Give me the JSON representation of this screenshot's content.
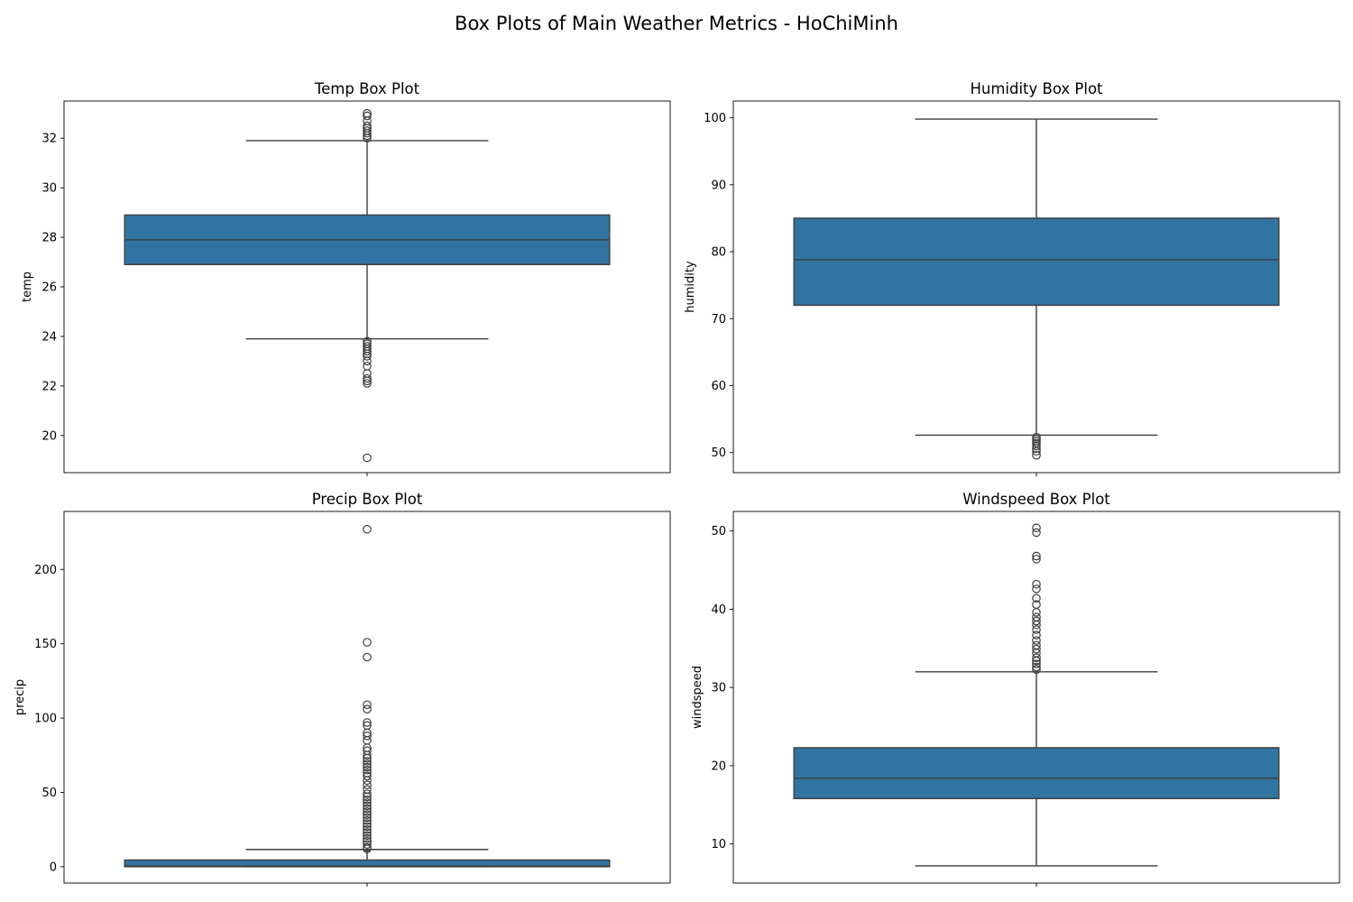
{
  "suptitle": "Box Plots of Main Weather Metrics - HoChiMinh",
  "colors": {
    "box_fill": "#3274a1",
    "line": "#3d3d3d",
    "frame": "#000000"
  },
  "chart_data": [
    {
      "type": "box",
      "title": "Temp Box Plot",
      "ylabel": "temp",
      "xlabel": "",
      "ylim": [
        18.5,
        33.5
      ],
      "yticks": [
        20,
        22,
        24,
        26,
        28,
        30,
        32
      ],
      "grid": false,
      "box": {
        "q1": 26.9,
        "median": 27.9,
        "q3": 28.9,
        "whisker_low": 23.9,
        "whisker_high": 31.9
      },
      "outliers": [
        33.0,
        32.9,
        32.7,
        32.5,
        32.4,
        32.3,
        32.2,
        32.1,
        32.0,
        23.8,
        23.7,
        23.6,
        23.5,
        23.4,
        23.3,
        23.2,
        23.0,
        22.8,
        22.5,
        22.3,
        22.2,
        22.1,
        19.1
      ]
    },
    {
      "type": "box",
      "title": "Humidity Box Plot",
      "ylabel": "humidity",
      "xlabel": "",
      "ylim": [
        47,
        102.5
      ],
      "yticks": [
        50,
        60,
        70,
        80,
        90,
        100
      ],
      "grid": false,
      "box": {
        "q1": 72.0,
        "median": 78.8,
        "q3": 85.0,
        "whisker_low": 52.6,
        "whisker_high": 99.8
      },
      "outliers": [
        52.3,
        52.0,
        51.7,
        51.4,
        51.0,
        50.6,
        50.2,
        49.6
      ]
    },
    {
      "type": "box",
      "title": "Precip Box Plot",
      "ylabel": "precip",
      "xlabel": "",
      "ylim": [
        -11,
        239
      ],
      "yticks": [
        0,
        50,
        100,
        150,
        200
      ],
      "grid": false,
      "box": {
        "q1": 0.0,
        "median": 0.4,
        "q3": 4.5,
        "whisker_low": 0.0,
        "whisker_high": 11.6
      },
      "outliers": [
        227,
        151,
        141,
        109,
        106,
        97,
        95,
        90,
        88,
        85,
        80,
        78,
        75,
        73,
        71,
        69,
        67,
        65,
        63,
        61,
        58,
        55,
        52,
        49,
        47,
        45,
        43,
        41,
        39,
        37,
        35,
        33,
        31,
        29,
        27,
        25,
        23,
        21,
        19,
        17,
        15,
        13,
        12
      ]
    },
    {
      "type": "box",
      "title": "Windspeed Box Plot",
      "ylabel": "windspeed",
      "xlabel": "",
      "ylim": [
        5,
        52.5
      ],
      "yticks": [
        10,
        20,
        30,
        40,
        50
      ],
      "grid": false,
      "box": {
        "q1": 15.8,
        "median": 18.4,
        "q3": 22.3,
        "whisker_low": 7.2,
        "whisker_high": 32.0
      },
      "outliers": [
        50.4,
        49.8,
        46.8,
        46.4,
        43.2,
        42.6,
        41.4,
        40.6,
        39.6,
        39.0,
        38.5,
        38.0,
        37.4,
        36.7,
        36.0,
        35.4,
        34.9,
        34.4,
        33.8,
        33.4,
        33.0,
        32.6,
        32.3
      ]
    }
  ]
}
